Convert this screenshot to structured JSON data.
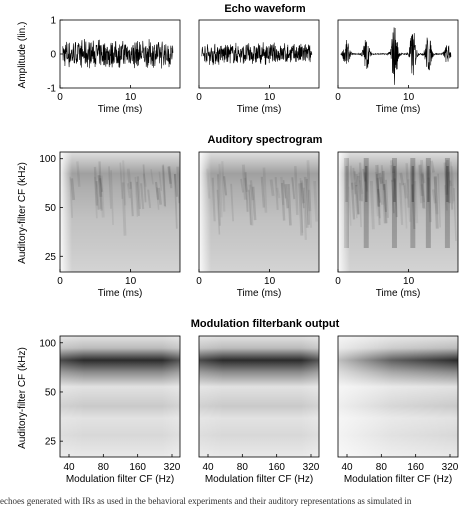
{
  "chart_data": [
    {
      "type": "line",
      "title": "Echo waveform",
      "xlabel": "Time (ms)",
      "ylabel": "Amplitude (lin.)",
      "xlim": [
        0,
        17
      ],
      "ylim": [
        -1,
        1
      ],
      "x_ticks": [
        0,
        10
      ],
      "y_ticks": [
        1,
        0,
        -1
      ],
      "x_tick_labels": [
        "0",
        "10"
      ],
      "y_tick_labels": [
        "1",
        "0",
        "-1"
      ],
      "panels": [
        {
          "style": "noise",
          "amplitude": 0.45
        },
        {
          "style": "noise",
          "amplitude": 0.35
        },
        {
          "style": "bursts",
          "burst_times_ms": [
            1.2,
            4.0,
            8.0,
            10.6,
            12.8,
            15.5
          ],
          "burst_amplitudes": [
            0.4,
            0.5,
            0.95,
            0.75,
            0.6,
            0.3
          ]
        }
      ]
    },
    {
      "type": "heatmap",
      "title": "Auditory spectrogram",
      "xlabel": "Time (ms)",
      "ylabel": "Auditory-filter CF (kHz)",
      "xlim": [
        0,
        17
      ],
      "ylim": [
        20,
        110
      ],
      "x_ticks": [
        0,
        10
      ],
      "y_ticks": [
        100,
        50,
        25
      ],
      "x_tick_labels": [
        "0",
        "10"
      ],
      "y_tick_labels": [
        "100",
        "50",
        "25"
      ],
      "panels": [
        {
          "style": "diffuse"
        },
        {
          "style": "diffuse"
        },
        {
          "style": "striated",
          "stripe_times_ms": [
            1.2,
            4.0,
            8.0,
            10.6,
            12.8,
            15.5
          ]
        }
      ]
    },
    {
      "type": "heatmap",
      "title": "Modulation filterbank output",
      "xlabel": "Modulation filter CF (Hz)",
      "ylabel": "Auditory-filter CF (kHz)",
      "x_ticks": [
        40,
        80,
        160,
        320
      ],
      "y_ticks": [
        100,
        50,
        25
      ],
      "x_tick_labels": [
        "40",
        "80",
        "160",
        "320"
      ],
      "y_tick_labels": [
        "100",
        "50",
        "25"
      ],
      "panels": [
        {
          "style": "uniform-band"
        },
        {
          "style": "uniform-band"
        },
        {
          "style": "rising-band"
        }
      ]
    }
  ],
  "caption": "echoes generated with IRs as used in the behavioral experiments and their auditory representations as simulated in"
}
